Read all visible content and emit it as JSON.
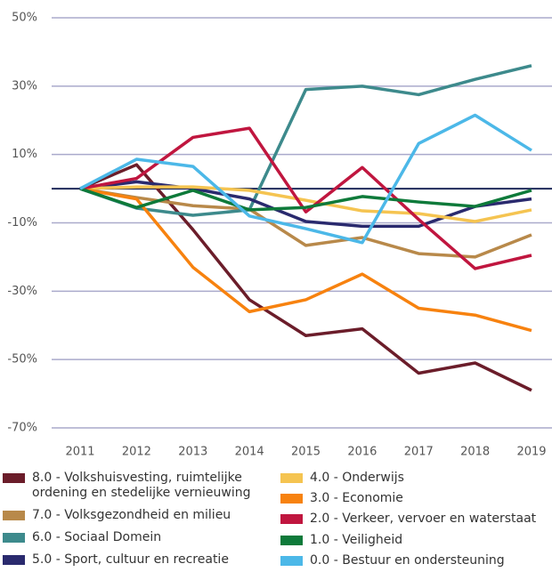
{
  "chart_data": {
    "type": "line",
    "x": [
      2011,
      2012,
      2013,
      2014,
      2015,
      2016,
      2017,
      2018,
      2019
    ],
    "ylim": [
      -70,
      50
    ],
    "yticks": [
      {
        "value": 50,
        "label": "50%"
      },
      {
        "value": 30,
        "label": "30%"
      },
      {
        "value": 10,
        "label": "10%"
      },
      {
        "value": -10,
        "label": "-10%"
      },
      {
        "value": -30,
        "label": "-30%"
      },
      {
        "value": -50,
        "label": "-50%"
      },
      {
        "value": -70,
        "label": "-70%"
      }
    ],
    "grid": true,
    "series": [
      {
        "name": "8.0 - Volkshuisvesting, ruimtelijke ordening en stedelijke vernieuwing",
        "color": "#6b1d2a",
        "values": [
          0,
          7,
          -12,
          -32.5,
          -43,
          -41,
          -54,
          -51,
          -59
        ]
      },
      {
        "name": "7.0 - Volksgezondheid en milieu",
        "color": "#b8894a",
        "values": [
          0,
          -2.6,
          -5,
          -6,
          -16.6,
          -14.3,
          -19,
          -20,
          -13.5
        ]
      },
      {
        "name": "6.0 - Sociaal Domein",
        "color": "#3d8a8c",
        "values": [
          0,
          -5.7,
          -7.8,
          -6.2,
          29,
          30,
          27.5,
          32,
          36
        ]
      },
      {
        "name": "5.0 - Sport, cultuur en recreatie",
        "color": "#2a2a6e",
        "values": [
          0,
          2,
          0,
          -3,
          -9.6,
          -11,
          -11,
          -5.2,
          -3
        ]
      },
      {
        "name": "4.0 - Onderwijs",
        "color": "#f5c451",
        "values": [
          0,
          0.5,
          0.5,
          -0.5,
          -3.4,
          -6.5,
          -7.3,
          -9.6,
          -6.2
        ]
      },
      {
        "name": "3.0 - Economie",
        "color": "#f7820f",
        "values": [
          0,
          -3,
          -23,
          -36,
          -32.5,
          -25,
          -35,
          -37,
          -41.5
        ]
      },
      {
        "name": "2.0 - Verkeer, vervoer en waterstaat",
        "color": "#c0163f",
        "values": [
          0,
          3,
          15,
          17.7,
          -6.8,
          6.2,
          -9,
          -23.4,
          -19.5
        ]
      },
      {
        "name": "1.0 - Veiligheid",
        "color": "#0e7a3a",
        "values": [
          0,
          -5.5,
          -0.5,
          -6.2,
          -5.5,
          -2.3,
          -3.9,
          -5.2,
          -0.5
        ]
      },
      {
        "name": "0.0 - Bestuur en ondersteuning",
        "color": "#4cb8e8",
        "values": [
          0,
          8.6,
          6.5,
          -8,
          -11.7,
          -15.8,
          13.2,
          21.5,
          11.2
        ]
      }
    ]
  }
}
